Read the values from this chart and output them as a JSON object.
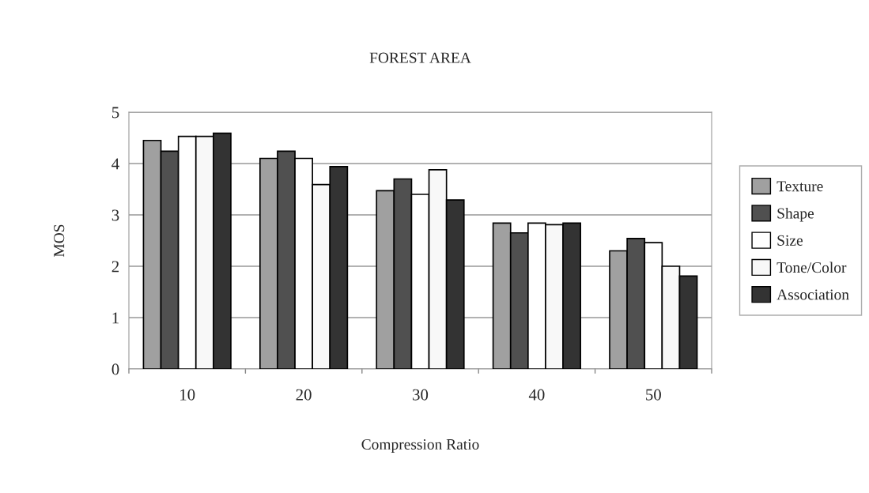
{
  "chart_data": {
    "type": "bar",
    "title": "FOREST AREA",
    "xlabel": "Compression Ratio",
    "ylabel": "MOS",
    "categories": [
      "10",
      "20",
      "30",
      "40",
      "50"
    ],
    "series": [
      {
        "name": "Texture",
        "color": "#a0a0a0",
        "values": [
          4.45,
          4.1,
          3.47,
          2.84,
          2.3
        ]
      },
      {
        "name": "Shape",
        "color": "#505050",
        "values": [
          4.24,
          4.24,
          3.7,
          2.65,
          2.54
        ]
      },
      {
        "name": "Size",
        "color": "#ffffff",
        "values": [
          4.53,
          4.1,
          3.4,
          2.84,
          2.46
        ]
      },
      {
        "name": "Tone/Color",
        "color": "#f8f8f8",
        "values": [
          4.53,
          3.59,
          3.88,
          2.81,
          2.0
        ]
      },
      {
        "name": "Association",
        "color": "#333333",
        "values": [
          4.59,
          3.94,
          3.29,
          2.84,
          1.81
        ]
      }
    ],
    "ylim": [
      0,
      5
    ],
    "yticks": [
      0,
      1,
      2,
      3,
      4,
      5
    ],
    "grid": "y",
    "legend": "right"
  }
}
